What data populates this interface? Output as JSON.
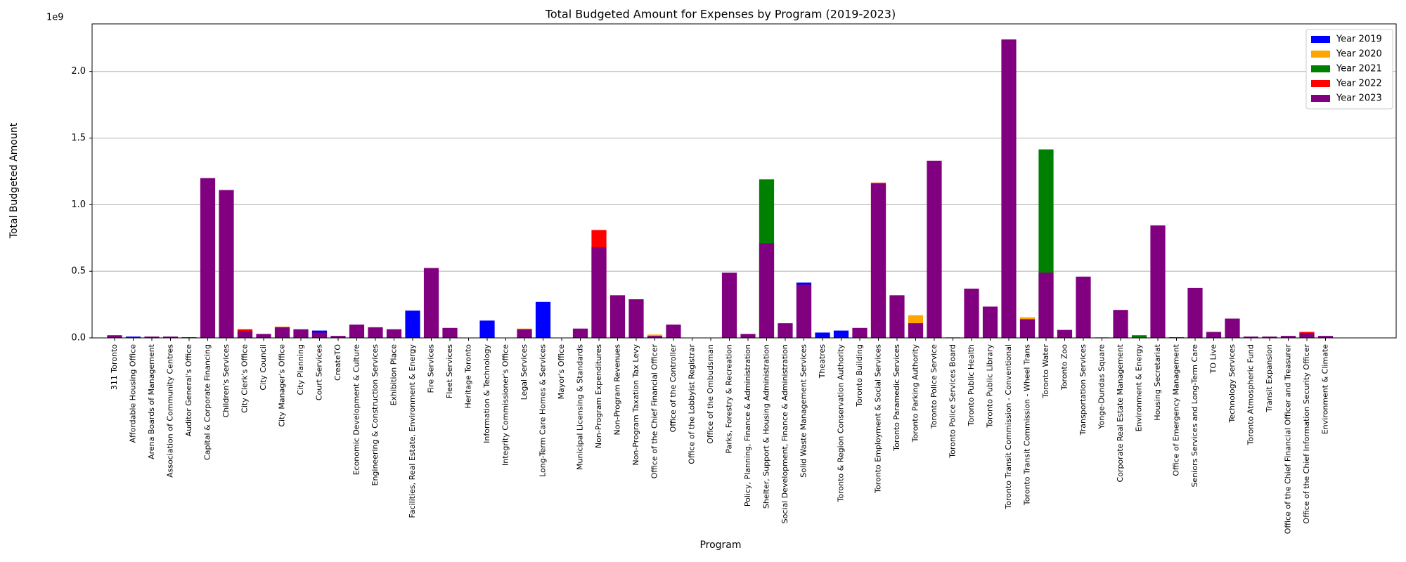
{
  "chart_data": {
    "type": "bar",
    "title": "Total Budgeted Amount for Expenses by Program (2019-2023)",
    "x_label": "Program",
    "y_label": "Total Budgeted Amount",
    "offset_label": "1e9",
    "categories": [
      "311 Toronto",
      "Affordable Housing Office",
      "Arena Boards of Management",
      "Association of Community Centres",
      "Auditor General's Office",
      "Capital & Corporate Financing",
      "Children's Services",
      "City Clerk's Office",
      "City Council",
      "City Manager's Office",
      "City Planning",
      "Court Services",
      "CreateTO",
      "Economic Development & Culture",
      "Engineering & Construction Services",
      "Exhibition Place",
      "Facilities, Real Estate, Environment & Energy",
      "Fire Services",
      "Fleet Services",
      "Heritage Toronto",
      "Information & Technology",
      "Integrity Commissioner's Office",
      "Legal Services",
      "Long-Term Care Homes & Services",
      "Mayor's Office",
      "Municipal Licensing & Standards",
      "Non-Program Expenditures",
      "Non-Program Revenues",
      "Non-Program Taxation Tax Levy",
      "Office of the Chief Financial Officer",
      "Office of the Controller",
      "Office of the Lobbyist Registrar",
      "Office of the Ombudsman",
      "Parks, Forestry & Recreation",
      "Policy, Planning, Finance & Administration",
      "Shelter, Support & Housing Administration",
      "Social Development, Finance & Administration",
      "Solid Waste Management Services",
      "Theatres",
      "Toronto & Region Conservation Authority",
      "Toronto Building",
      "Toronto Employment & Social Services",
      "Toronto Paramedic Services",
      "Toronto Parking Authority",
      "Toronto Police Service",
      "Toronto Police Services Board",
      "Toronto Public Health",
      "Toronto Public Library",
      "Toronto Transit Commission - Conventional",
      "Toronto Transit Commission - Wheel Trans",
      "Toronto Water",
      "Toronto Zoo",
      "Transportation Services",
      "Yonge-Dundas Square",
      "Corporate Real Estate Management",
      "Environment & Energy",
      "Housing Secretariat",
      "Office of Emergency Management",
      "Seniors Services and Long-Term Care",
      "TO Live",
      "Technology Services",
      "Toronto Atmospheric Fund",
      "Transit Expansion",
      "Office of the Chief Financial Officer and Treasurer",
      "Office of the Chief Information Security Officer",
      "Environment & Climate"
    ],
    "series": [
      {
        "name": "Year 2019",
        "color": "#0000ff",
        "values": [
          null,
          10000000.0,
          null,
          null,
          null,
          null,
          null,
          null,
          null,
          null,
          null,
          55000000.0,
          null,
          null,
          null,
          null,
          205000000.0,
          null,
          null,
          null,
          130000000.0,
          null,
          null,
          270000000.0,
          null,
          null,
          null,
          null,
          null,
          null,
          null,
          null,
          null,
          null,
          null,
          null,
          null,
          415000000.0,
          40000000.0,
          55000000.0,
          null,
          null,
          null,
          null,
          null,
          null,
          null,
          null,
          null,
          null,
          null,
          null,
          null,
          null,
          null,
          null,
          null,
          null,
          null,
          null,
          null,
          null,
          null,
          null,
          null,
          null
        ]
      },
      {
        "name": "Year 2020",
        "color": "#ffa500",
        "values": [
          null,
          null,
          null,
          null,
          null,
          null,
          null,
          null,
          null,
          85000000.0,
          null,
          null,
          null,
          null,
          null,
          null,
          null,
          null,
          null,
          null,
          null,
          null,
          70000000.0,
          null,
          null,
          null,
          null,
          null,
          null,
          25000000.0,
          null,
          null,
          null,
          null,
          null,
          null,
          null,
          null,
          null,
          null,
          null,
          null,
          null,
          170000000.0,
          null,
          5000000.0,
          null,
          null,
          null,
          155000000.0,
          null,
          null,
          null,
          5000000.0,
          null,
          null,
          null,
          null,
          null,
          null,
          null,
          null,
          null,
          null,
          null,
          null
        ]
      },
      {
        "name": "Year 2021",
        "color": "#008000",
        "values": [
          null,
          null,
          null,
          null,
          null,
          null,
          null,
          null,
          null,
          null,
          null,
          null,
          null,
          null,
          null,
          null,
          null,
          null,
          null,
          null,
          null,
          null,
          null,
          null,
          null,
          null,
          null,
          null,
          null,
          null,
          null,
          null,
          null,
          null,
          null,
          1190000000.0,
          null,
          null,
          null,
          null,
          null,
          null,
          null,
          null,
          null,
          null,
          null,
          null,
          null,
          null,
          1415000000.0,
          null,
          null,
          null,
          null,
          20000000.0,
          null,
          null,
          null,
          null,
          null,
          null,
          null,
          null,
          null,
          null
        ]
      },
      {
        "name": "Year 2022",
        "color": "#ff0000",
        "values": [
          null,
          null,
          null,
          null,
          null,
          null,
          null,
          65000000.0,
          null,
          null,
          null,
          null,
          null,
          null,
          null,
          null,
          null,
          null,
          null,
          null,
          null,
          null,
          null,
          null,
          null,
          null,
          810000000.0,
          null,
          null,
          null,
          null,
          null,
          null,
          null,
          null,
          null,
          null,
          null,
          null,
          null,
          null,
          1165000000.0,
          null,
          null,
          null,
          null,
          null,
          null,
          null,
          null,
          null,
          null,
          null,
          null,
          null,
          null,
          null,
          null,
          null,
          null,
          null,
          null,
          null,
          null,
          45000000.0,
          null
        ]
      },
      {
        "name": "Year 2023",
        "color": "#800080",
        "values": [
          20000000.0,
          5000000.0,
          10000000.0,
          10000000.0,
          5000000.0,
          1200000000.0,
          1110000000.0,
          50000000.0,
          30000000.0,
          80000000.0,
          65000000.0,
          40000000.0,
          15000000.0,
          100000000.0,
          80000000.0,
          65000000.0,
          null,
          525000000.0,
          75000000.0,
          2000000.0,
          null,
          2000000.0,
          65000000.0,
          null,
          2000000.0,
          70000000.0,
          680000000.0,
          320000000.0,
          290000000.0,
          15000000.0,
          100000000.0,
          1000000.0,
          2000000.0,
          490000000.0,
          30000000.0,
          710000000.0,
          110000000.0,
          400000000.0,
          null,
          null,
          75000000.0,
          1155000000.0,
          320000000.0,
          110000000.0,
          1330000000.0,
          null,
          370000000.0,
          235000000.0,
          2240000000.0,
          140000000.0,
          490000000.0,
          60000000.0,
          460000000.0,
          null,
          210000000.0,
          null,
          845000000.0,
          5000000.0,
          375000000.0,
          45000000.0,
          145000000.0,
          10000000.0,
          10000000.0,
          15000000.0,
          35000000.0,
          15000000.0
        ]
      }
    ],
    "ylim": [
      0,
      2357000000
    ],
    "yticks": [
      {
        "value": 0,
        "label": "0.0"
      },
      {
        "value": 500000000,
        "label": "0.5"
      },
      {
        "value": 1000000000,
        "label": "1.0"
      },
      {
        "value": 1500000000,
        "label": "1.5"
      },
      {
        "value": 2000000000,
        "label": "2.0"
      }
    ],
    "grid": true,
    "legend": "upper right"
  }
}
